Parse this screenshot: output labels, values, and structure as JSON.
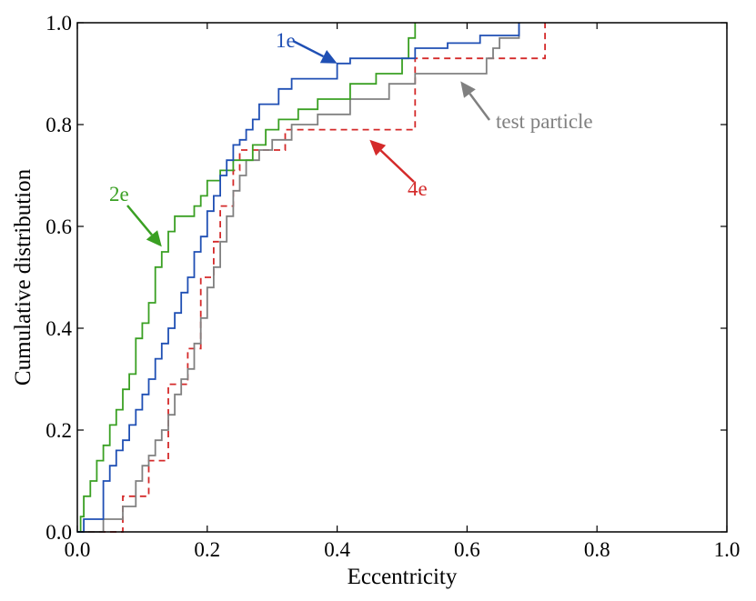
{
  "chart_data": {
    "type": "line",
    "xlabel": "Eccentricity",
    "ylabel": "Cumulative distribution",
    "xlim": [
      0.0,
      1.0
    ],
    "ylim": [
      0.0,
      1.0
    ],
    "xticks": [
      "0.0",
      "0.2",
      "0.4",
      "0.6",
      "0.8",
      "1.0"
    ],
    "yticks": [
      "0.0",
      "0.2",
      "0.4",
      "0.6",
      "0.8",
      "1.0"
    ],
    "grid": false,
    "series": [
      {
        "name": "1e",
        "color": "#1f4fb4",
        "style": "solid",
        "x": [
          0.0,
          0.01,
          0.04,
          0.05,
          0.06,
          0.07,
          0.08,
          0.09,
          0.1,
          0.11,
          0.12,
          0.13,
          0.14,
          0.15,
          0.16,
          0.17,
          0.18,
          0.19,
          0.2,
          0.21,
          0.22,
          0.23,
          0.24,
          0.25,
          0.26,
          0.27,
          0.28,
          0.31,
          0.33,
          0.4,
          0.42,
          0.52,
          0.57,
          0.62,
          0.68
        ],
        "y": [
          0.0,
          0.025,
          0.1,
          0.13,
          0.16,
          0.18,
          0.21,
          0.24,
          0.27,
          0.3,
          0.34,
          0.37,
          0.4,
          0.43,
          0.47,
          0.5,
          0.55,
          0.58,
          0.63,
          0.66,
          0.7,
          0.73,
          0.76,
          0.77,
          0.79,
          0.81,
          0.84,
          0.87,
          0.89,
          0.92,
          0.93,
          0.95,
          0.96,
          0.975,
          1.0
        ]
      },
      {
        "name": "2e",
        "color": "#3aa023",
        "style": "solid",
        "x": [
          0.0,
          0.005,
          0.01,
          0.02,
          0.03,
          0.04,
          0.05,
          0.06,
          0.07,
          0.08,
          0.09,
          0.1,
          0.11,
          0.12,
          0.13,
          0.14,
          0.15,
          0.16,
          0.17,
          0.18,
          0.19,
          0.2,
          0.22,
          0.24,
          0.27,
          0.29,
          0.31,
          0.34,
          0.37,
          0.42,
          0.46,
          0.5,
          0.51,
          0.52
        ],
        "y": [
          0.0,
          0.03,
          0.07,
          0.1,
          0.14,
          0.17,
          0.21,
          0.24,
          0.28,
          0.31,
          0.38,
          0.41,
          0.45,
          0.52,
          0.55,
          0.59,
          0.62,
          0.62,
          0.62,
          0.64,
          0.66,
          0.69,
          0.71,
          0.73,
          0.76,
          0.79,
          0.81,
          0.83,
          0.85,
          0.88,
          0.9,
          0.93,
          0.97,
          1.0
        ]
      },
      {
        "name": "test particle",
        "color": "#808080",
        "style": "solid",
        "x": [
          0.0,
          0.04,
          0.07,
          0.09,
          0.1,
          0.11,
          0.12,
          0.13,
          0.14,
          0.15,
          0.16,
          0.17,
          0.18,
          0.19,
          0.2,
          0.21,
          0.22,
          0.23,
          0.24,
          0.25,
          0.26,
          0.28,
          0.3,
          0.33,
          0.37,
          0.42,
          0.48,
          0.52,
          0.63,
          0.64,
          0.65,
          0.68
        ],
        "y": [
          0.0,
          0.025,
          0.05,
          0.1,
          0.13,
          0.15,
          0.18,
          0.2,
          0.23,
          0.27,
          0.3,
          0.32,
          0.37,
          0.42,
          0.48,
          0.52,
          0.57,
          0.62,
          0.67,
          0.7,
          0.73,
          0.75,
          0.77,
          0.8,
          0.82,
          0.85,
          0.88,
          0.9,
          0.93,
          0.95,
          0.97,
          1.0
        ]
      },
      {
        "name": "4e",
        "color": "#d42a2a",
        "style": "dashed",
        "x": [
          0.0,
          0.07,
          0.11,
          0.14,
          0.17,
          0.19,
          0.21,
          0.22,
          0.24,
          0.25,
          0.32,
          0.52,
          0.72
        ],
        "y": [
          0.0,
          0.07,
          0.14,
          0.29,
          0.36,
          0.5,
          0.57,
          0.64,
          0.71,
          0.75,
          0.79,
          0.93,
          1.0
        ]
      }
    ],
    "annotations": [
      {
        "text": "1e",
        "color": "#1f4fb4",
        "points_to": [
          0.4,
          0.92
        ]
      },
      {
        "text": "2e",
        "color": "#3aa023",
        "points_to": [
          0.13,
          0.56
        ]
      },
      {
        "text": "test particle",
        "color": "#808080",
        "points_to": [
          0.59,
          0.885
        ]
      },
      {
        "text": "4e",
        "color": "#d42a2a",
        "points_to": [
          0.45,
          0.77
        ]
      }
    ]
  }
}
